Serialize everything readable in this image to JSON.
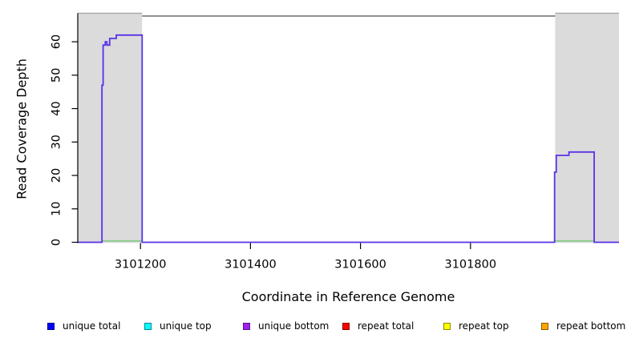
{
  "chart_data": {
    "type": "line",
    "style": "step",
    "title": "",
    "xlabel": "Coordinate in Reference Genome",
    "ylabel": "Read Coverage Depth",
    "xlim": [
      3101086,
      3102070
    ],
    "ylim": [
      0,
      67.7
    ],
    "x_ticks": [
      3101200,
      3101400,
      3101600,
      3101800
    ],
    "y_ticks": [
      0,
      10,
      20,
      30,
      40,
      50,
      60
    ],
    "grid": false,
    "background_regions": {
      "color": "#DBDBDB",
      "edge_color": "#A3A3A3",
      "spans": [
        [
          3101086,
          3101203
        ],
        [
          3101954,
          3102070
        ]
      ]
    },
    "plot_top_border": {
      "color": "#4D4D4D",
      "span": [
        3101203,
        3101954
      ]
    },
    "series": [
      {
        "name": "unique bottom coverage",
        "color": "#5A31E8",
        "points": [
          [
            3101086,
            0
          ],
          [
            3101130,
            0
          ],
          [
            3101130,
            47
          ],
          [
            3101132,
            47
          ],
          [
            3101132,
            59
          ],
          [
            3101136,
            59
          ],
          [
            3101136,
            60
          ],
          [
            3101139,
            60
          ],
          [
            3101139,
            59
          ],
          [
            3101144,
            59
          ],
          [
            3101144,
            61
          ],
          [
            3101156,
            61
          ],
          [
            3101156,
            62
          ],
          [
            3101203,
            62
          ],
          [
            3101203,
            0
          ],
          [
            3101953,
            0
          ],
          [
            3101953,
            21
          ],
          [
            3101956,
            21
          ],
          [
            3101956,
            26
          ],
          [
            3101979,
            26
          ],
          [
            3101979,
            27
          ],
          [
            3102025,
            27
          ],
          [
            3102025,
            0
          ],
          [
            3102070,
            0
          ]
        ]
      },
      {
        "name": "zero-depth series overlay",
        "color": "#7CC87C",
        "depth": 0,
        "segments": [
          [
            3101131,
            3101203
          ],
          [
            3101954,
            3102025
          ]
        ]
      }
    ],
    "legend": {
      "position": "bottom",
      "items": [
        {
          "label": "unique total",
          "fill": "#0000FF",
          "border": "#00008B"
        },
        {
          "label": "unique top",
          "fill": "#00FFFF",
          "border": "#008B8B"
        },
        {
          "label": "unique bottom",
          "fill": "#A020F0",
          "border": "#551A8B"
        },
        {
          "label": "repeat total",
          "fill": "#FF0000",
          "border": "#8B0000"
        },
        {
          "label": "repeat top",
          "fill": "#FFFF00",
          "border": "#8B8B00"
        },
        {
          "label": "repeat bottom",
          "fill": "#FFA500",
          "border": "#8B5A00"
        }
      ]
    }
  }
}
